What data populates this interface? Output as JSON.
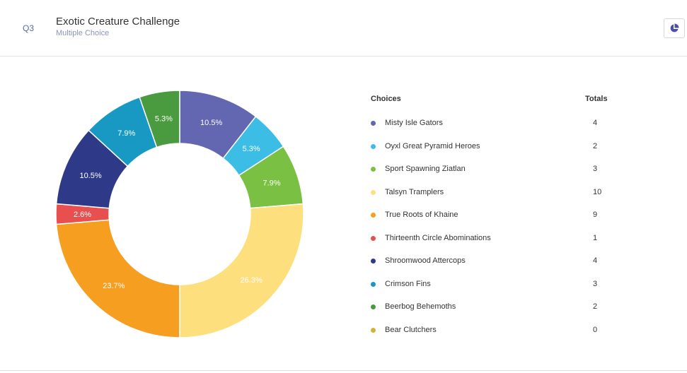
{
  "header": {
    "question_number": "Q3",
    "title": "Exotic Creature Challenge",
    "subtitle": "Multiple Choice",
    "chart_toggle_icon": "pie-chart-icon"
  },
  "legend": {
    "choices_header": "Choices",
    "totals_header": "Totals"
  },
  "chart_data": {
    "type": "pie",
    "variant": "donut",
    "categories": [
      "Misty Isle Gators",
      "Oyxl Great Pyramid Heroes",
      "Sport Spawning Ziatlan",
      "Talsyn Tramplers",
      "True Roots of Khaine",
      "Thirteenth Circle Abominations",
      "Shroomwood Attercops",
      "Crimson Fins",
      "Beerbog Behemoths",
      "Bear Clutchers"
    ],
    "values": [
      4,
      2,
      3,
      10,
      9,
      1,
      4,
      3,
      2,
      0
    ],
    "labels": [
      "10.5%",
      "5.3%",
      "7.9%",
      "26.3%",
      "23.7%",
      "2.6%",
      "10.5%",
      "7.9%",
      "5.3%",
      ""
    ],
    "colors": [
      "#6366b0",
      "#3bbde6",
      "#7ac143",
      "#fde07d",
      "#f59e20",
      "#e85050",
      "#2e3a87",
      "#1799c4",
      "#4a9a3f",
      "#d4b23a"
    ],
    "legend_placement": "right"
  }
}
